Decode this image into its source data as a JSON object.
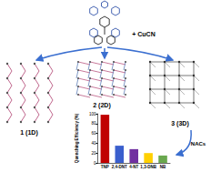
{
  "diagram": {
    "reagent": "+ CuCN",
    "products": [
      {
        "label": "1 (1D)"
      },
      {
        "label": "2 (2D)"
      },
      {
        "label": "3 (3D)"
      }
    ],
    "analyte_label": "NACs"
  },
  "chart_data": {
    "type": "bar",
    "y_label": "Quenching Efficiency (%)",
    "categories": [
      "TNP",
      "2,4-DNT",
      "4-NT",
      "1,3-DNB",
      "NB"
    ],
    "values": [
      98,
      35,
      28,
      20,
      15
    ],
    "colors": [
      "#c00000",
      "#3a5fcd",
      "#7030a0",
      "#ffd000",
      "#6aa84f"
    ],
    "ylim": [
      0,
      100
    ],
    "yticks": [
      0,
      20,
      40,
      60,
      80,
      100
    ],
    "grid": false
  }
}
